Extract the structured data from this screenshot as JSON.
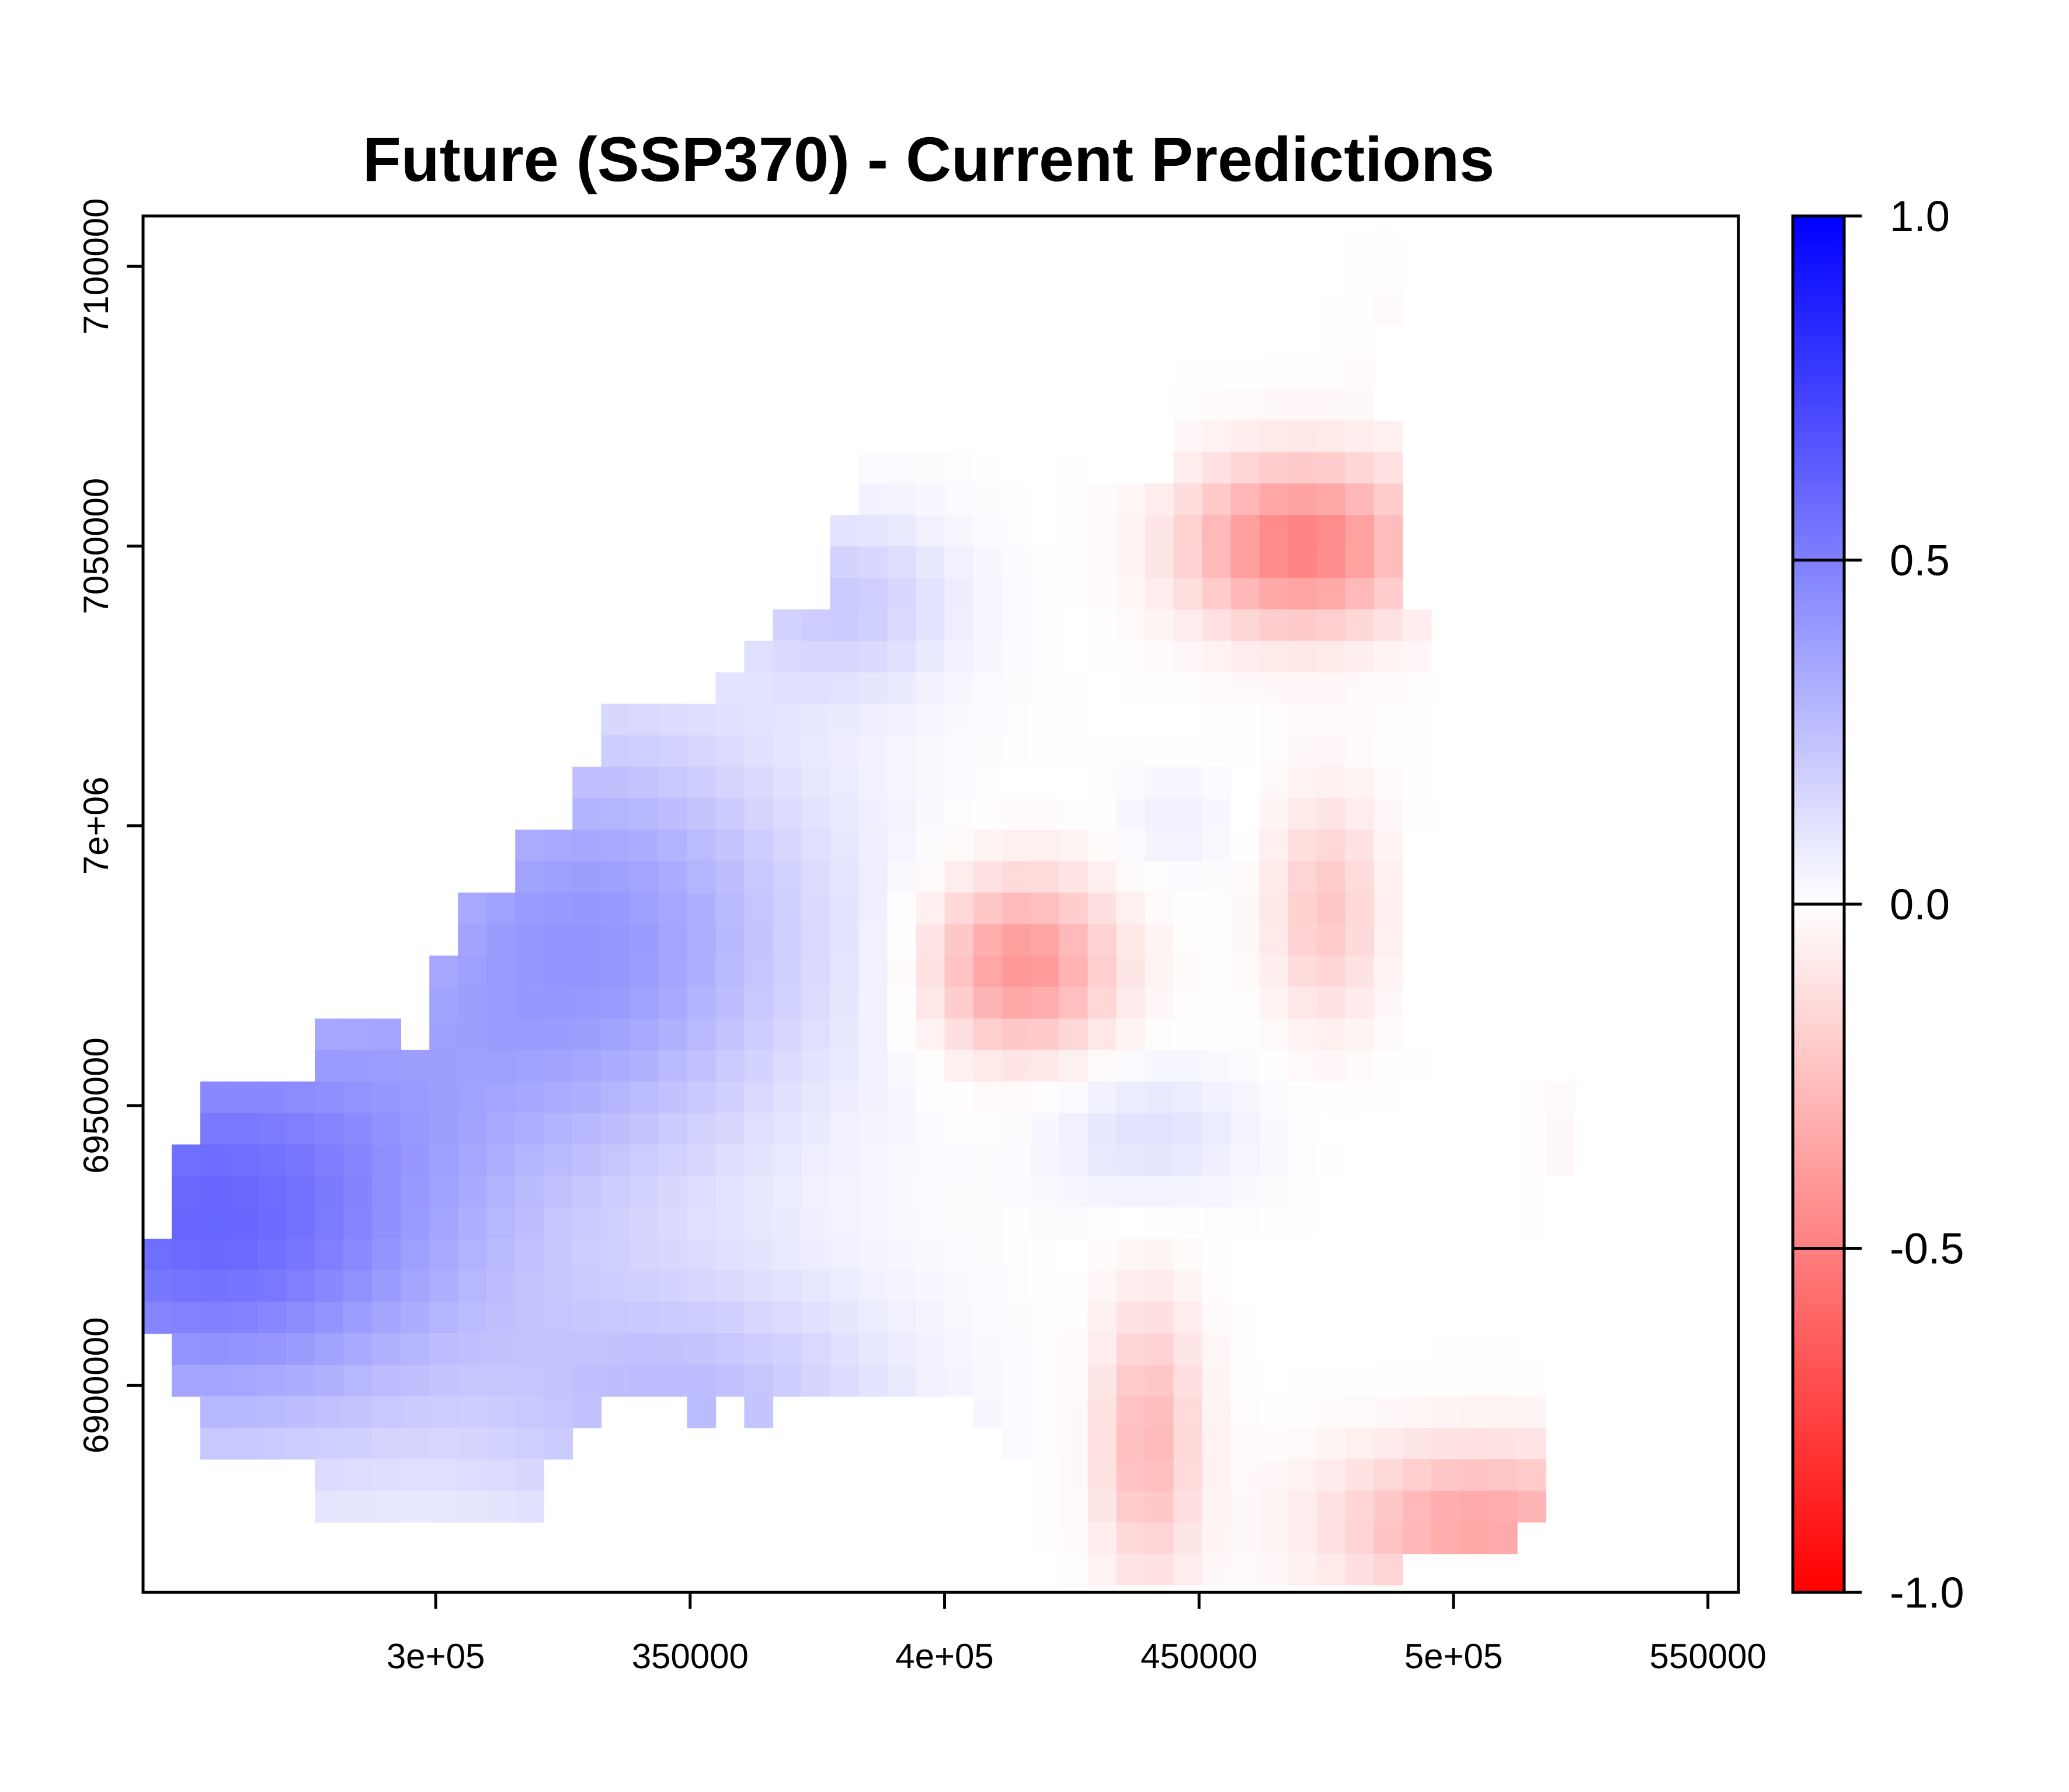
{
  "chart_data": {
    "type": "heatmap",
    "title": "Future (SSP370) - Current Predictions",
    "xlabel": "",
    "ylabel": "",
    "xlim": [
      242500,
      556000
    ],
    "ylim": [
      6863000,
      7109000
    ],
    "x_ticks": [
      {
        "value": 300000,
        "label": "3e+05"
      },
      {
        "value": 350000,
        "label": "350000"
      },
      {
        "value": 400000,
        "label": "4e+05"
      },
      {
        "value": 450000,
        "label": "450000"
      },
      {
        "value": 500000,
        "label": "5e+05"
      },
      {
        "value": 550000,
        "label": "550000"
      }
    ],
    "y_ticks": [
      {
        "value": 6900000,
        "label": "6900000"
      },
      {
        "value": 6950000,
        "label": "6950000"
      },
      {
        "value": 7000000,
        "label": "7e+06"
      },
      {
        "value": 7050000,
        "label": "7050000"
      },
      {
        "value": 7100000,
        "label": "7100000"
      }
    ],
    "grid": false,
    "cell_size": 5625,
    "x_origin": 242500,
    "y_top": 7109000,
    "colorbar": {
      "range": [
        -1.0,
        1.0
      ],
      "low_color": "#ff0000",
      "mid_color": "#ffffff",
      "high_color": "#0000ff",
      "ticks": [
        {
          "value": 1.0,
          "label": "1.0"
        },
        {
          "value": 0.5,
          "label": "0.5"
        },
        {
          "value": 0.0,
          "label": "0.0"
        },
        {
          "value": -0.5,
          "label": "-0.5"
        },
        {
          "value": -1.0,
          "label": "-1.0"
        }
      ]
    },
    "legend_position": "right",
    "value_blobs": [
      {
        "x": 255000,
        "y": 6930000,
        "sx": 55000,
        "sy": 40000,
        "v": 0.6
      },
      {
        "x": 330000,
        "y": 6980000,
        "sx": 45000,
        "sy": 40000,
        "v": 0.4
      },
      {
        "x": 350000,
        "y": 6895000,
        "sx": 40000,
        "sy": 25000,
        "v": 0.25
      },
      {
        "x": 380000,
        "y": 7040000,
        "sx": 22000,
        "sy": 16000,
        "v": 0.2
      },
      {
        "x": 470000,
        "y": 7050000,
        "sx": 22000,
        "sy": 15000,
        "v": -0.5
      },
      {
        "x": 415000,
        "y": 6975000,
        "sx": 18000,
        "sy": 16000,
        "v": -0.42
      },
      {
        "x": 475000,
        "y": 6985000,
        "sx": 11000,
        "sy": 20000,
        "v": -0.22
      },
      {
        "x": 505000,
        "y": 6875000,
        "sx": 28000,
        "sy": 14000,
        "v": -0.35
      },
      {
        "x": 440000,
        "y": 6890000,
        "sx": 10000,
        "sy": 25000,
        "v": -0.28
      },
      {
        "x": 540000,
        "y": 6945000,
        "sx": 14000,
        "sy": 16000,
        "v": -0.18
      },
      {
        "x": 440000,
        "y": 6945000,
        "sx": 20000,
        "sy": 12000,
        "v": 0.12
      },
      {
        "x": 445000,
        "y": 7000000,
        "sx": 12000,
        "sy": 10000,
        "v": 0.06
      },
      {
        "x": 500000,
        "y": 7085000,
        "sx": 14000,
        "sy": 18000,
        "v": -0.05
      }
    ],
    "rows": [
      {
        "y": 7103375,
        "cells": [
          [
            39,
            43
          ]
        ]
      },
      {
        "y": 7097750,
        "cells": [
          [
            37,
            43
          ]
        ]
      },
      {
        "y": 7092125,
        "cells": [
          [
            37,
            43
          ]
        ]
      },
      {
        "y": 7086500,
        "cells": [
          [
            36,
            42
          ]
        ]
      },
      {
        "y": 7080875,
        "cells": [
          [
            36,
            42
          ]
        ]
      },
      {
        "y": 7075250,
        "cells": [
          [
            36,
            42
          ]
        ]
      },
      {
        "y": 7069625,
        "cells": [
          [
            36,
            43
          ]
        ]
      },
      {
        "y": 7064000,
        "cells": [
          [
            25,
            32
          ],
          [
            36,
            43
          ]
        ]
      },
      {
        "y": 7058375,
        "cells": [
          [
            25,
            43
          ]
        ]
      },
      {
        "y": 7052750,
        "cells": [
          [
            24,
            43
          ]
        ]
      },
      {
        "y": 7047125,
        "cells": [
          [
            24,
            43
          ]
        ]
      },
      {
        "y": 7041500,
        "cells": [
          [
            24,
            43
          ]
        ]
      },
      {
        "y": 7035875,
        "cells": [
          [
            22,
            44
          ]
        ]
      },
      {
        "y": 7030250,
        "cells": [
          [
            21,
            44
          ]
        ]
      },
      {
        "y": 7024625,
        "cells": [
          [
            20,
            44
          ]
        ]
      },
      {
        "y": 7019000,
        "cells": [
          [
            16,
            44
          ]
        ]
      },
      {
        "y": 7013375,
        "cells": [
          [
            16,
            44
          ]
        ]
      },
      {
        "y": 7007750,
        "cells": [
          [
            15,
            44
          ]
        ]
      },
      {
        "y": 7002125,
        "cells": [
          [
            15,
            44
          ],
          [
            47,
            48
          ]
        ]
      },
      {
        "y": 6996500,
        "cells": [
          [
            13,
            43
          ],
          [
            47,
            47
          ]
        ]
      },
      {
        "y": 6990875,
        "cells": [
          [
            13,
            43
          ],
          [
            47,
            47
          ]
        ]
      },
      {
        "y": 6985250,
        "cells": [
          [
            11,
            43
          ]
        ]
      },
      {
        "y": 6979625,
        "cells": [
          [
            11,
            43
          ]
        ]
      },
      {
        "y": 6974000,
        "cells": [
          [
            10,
            43
          ]
        ]
      },
      {
        "y": 6968375,
        "cells": [
          [
            10,
            43
          ]
        ]
      },
      {
        "y": 6962750,
        "cells": [
          [
            6,
            8
          ],
          [
            10,
            43
          ]
        ]
      },
      {
        "y": 6957125,
        "cells": [
          [
            6,
            44
          ]
        ]
      },
      {
        "y": 6951500,
        "cells": [
          [
            2,
            45
          ],
          [
            48,
            49
          ]
        ]
      },
      {
        "y": 6945875,
        "cells": [
          [
            2,
            45
          ],
          [
            48,
            49
          ]
        ]
      },
      {
        "y": 6940250,
        "cells": [
          [
            1,
            46
          ],
          [
            48,
            49
          ]
        ]
      },
      {
        "y": 6934625,
        "cells": [
          [
            1,
            48
          ]
        ]
      },
      {
        "y": 6929000,
        "cells": [
          [
            1,
            48
          ]
        ]
      },
      {
        "y": 6923375,
        "cells": [
          [
            0,
            48
          ]
        ]
      },
      {
        "y": 6917750,
        "cells": [
          [
            0,
            47
          ]
        ]
      },
      {
        "y": 6912125,
        "cells": [
          [
            0,
            47
          ]
        ]
      },
      {
        "y": 6906500,
        "cells": [
          [
            1,
            47
          ]
        ]
      },
      {
        "y": 6900875,
        "cells": [
          [
            1,
            48
          ]
        ]
      },
      {
        "y": 6895250,
        "cells": [
          [
            2,
            15
          ],
          [
            19,
            19
          ],
          [
            21,
            21
          ],
          [
            29,
            48
          ]
        ]
      },
      {
        "y": 6889625,
        "cells": [
          [
            2,
            14
          ],
          [
            30,
            48
          ]
        ]
      },
      {
        "y": 6884000,
        "cells": [
          [
            6,
            13
          ],
          [
            31,
            48
          ]
        ]
      },
      {
        "y": 6878375,
        "cells": [
          [
            6,
            13
          ],
          [
            31,
            48
          ]
        ]
      },
      {
        "y": 6872750,
        "cells": [
          [
            31,
            47
          ]
        ]
      },
      {
        "y": 6867125,
        "cells": [
          [
            32,
            43
          ]
        ]
      }
    ]
  }
}
